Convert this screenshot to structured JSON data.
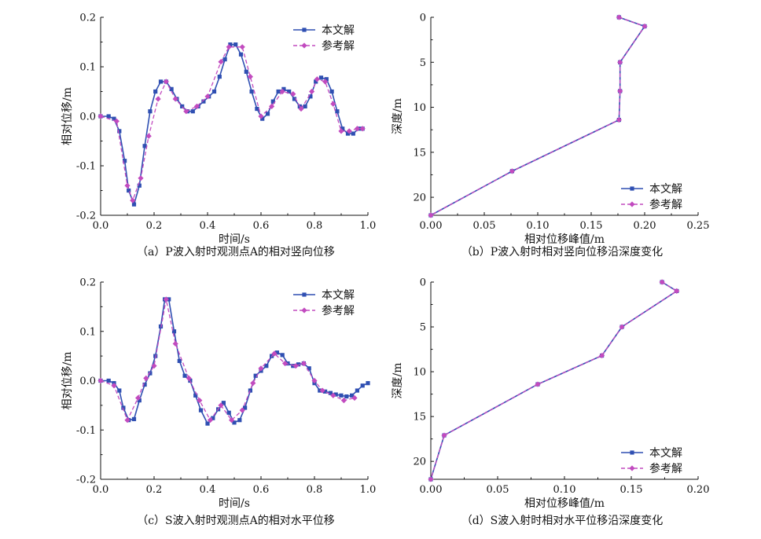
{
  "colors": {
    "series_main": "#2f4fb2",
    "series_ref": "#c24bbf",
    "axis": "#111111"
  },
  "chart_data": [
    {
      "id": "a",
      "type": "line",
      "caption": "（a）P波入射时观测点A的相对竖向位移",
      "xlabel": "时间/s",
      "ylabel": "相对位移/m",
      "xlim": [
        0.0,
        1.0
      ],
      "ylim": [
        -0.2,
        0.2
      ],
      "xticks": [
        "0.0",
        "0.2",
        "0.4",
        "0.6",
        "0.8",
        "1.0"
      ],
      "yticks": [
        "-0.2",
        "-0.1",
        "0.0",
        "0.1",
        "0.2"
      ],
      "legend_position": "top-right",
      "series": [
        {
          "name": "本文解",
          "marker": "square",
          "x": [
            0.0,
            0.03,
            0.05,
            0.07,
            0.09,
            0.105,
            0.125,
            0.145,
            0.165,
            0.185,
            0.205,
            0.225,
            0.245,
            0.265,
            0.285,
            0.305,
            0.325,
            0.345,
            0.365,
            0.385,
            0.405,
            0.425,
            0.445,
            0.465,
            0.485,
            0.505,
            0.525,
            0.545,
            0.565,
            0.585,
            0.605,
            0.625,
            0.645,
            0.665,
            0.685,
            0.705,
            0.725,
            0.745,
            0.765,
            0.785,
            0.805,
            0.825,
            0.845,
            0.865,
            0.885,
            0.905,
            0.925,
            0.945,
            0.965,
            0.98
          ],
          "y": [
            0.0,
            0.0,
            -0.005,
            -0.03,
            -0.09,
            -0.15,
            -0.178,
            -0.14,
            -0.06,
            0.01,
            0.05,
            0.07,
            0.07,
            0.055,
            0.035,
            0.02,
            0.01,
            0.01,
            0.02,
            0.03,
            0.04,
            0.05,
            0.08,
            0.115,
            0.145,
            0.145,
            0.125,
            0.09,
            0.05,
            0.015,
            -0.005,
            0.005,
            0.03,
            0.05,
            0.055,
            0.05,
            0.035,
            0.02,
            0.02,
            0.04,
            0.07,
            0.078,
            0.075,
            0.05,
            0.01,
            -0.025,
            -0.035,
            -0.035,
            -0.025,
            -0.025
          ]
        },
        {
          "name": "参考解",
          "marker": "diamond",
          "x": [
            0.0,
            0.06,
            0.1,
            0.12,
            0.15,
            0.18,
            0.215,
            0.245,
            0.28,
            0.32,
            0.36,
            0.4,
            0.45,
            0.48,
            0.53,
            0.56,
            0.6,
            0.64,
            0.68,
            0.72,
            0.75,
            0.79,
            0.81,
            0.84,
            0.87,
            0.9,
            0.93,
            0.96,
            0.98
          ],
          "y": [
            0.0,
            -0.01,
            -0.14,
            -0.17,
            -0.125,
            -0.04,
            0.035,
            0.07,
            0.035,
            0.01,
            0.02,
            0.04,
            0.11,
            0.14,
            0.14,
            0.08,
            0.0,
            0.02,
            0.05,
            0.045,
            0.015,
            0.05,
            0.075,
            0.07,
            0.025,
            -0.03,
            -0.03,
            -0.025,
            -0.025
          ]
        }
      ]
    },
    {
      "id": "b",
      "type": "line",
      "caption": "（b）P波入射时相对竖向位移沿深度变化",
      "xlabel": "相对位移峰值/m",
      "ylabel": "深度/m",
      "xlim": [
        0.0,
        0.25
      ],
      "ylim": [
        0,
        22
      ],
      "y_inverted": true,
      "xticks": [
        "0.00",
        "0.05",
        "0.10",
        "0.15",
        "0.20",
        "0.25"
      ],
      "yticks": [
        "0",
        "5",
        "10",
        "15",
        "20"
      ],
      "legend_position": "bottom-right",
      "series": [
        {
          "name": "本文解",
          "marker": "square",
          "x": [
            0.176,
            0.2,
            0.177,
            0.177,
            0.176,
            0.076,
            0.0
          ],
          "y": [
            0,
            1,
            5,
            8.2,
            11.4,
            17.1,
            22
          ]
        },
        {
          "name": "参考解",
          "marker": "diamond",
          "x": [
            0.176,
            0.2,
            0.177,
            0.177,
            0.176,
            0.076,
            0.0
          ],
          "y": [
            0,
            1,
            5,
            8.2,
            11.4,
            17.1,
            22
          ]
        }
      ]
    },
    {
      "id": "c",
      "type": "line",
      "caption": "（c）S波入射时观测点A的相对水平位移",
      "xlabel": "时间/s",
      "ylabel": "相对位移/m",
      "xlim": [
        0.0,
        1.0
      ],
      "ylim": [
        -0.2,
        0.2
      ],
      "xticks": [
        "0.0",
        "0.2",
        "0.4",
        "0.6",
        "0.8",
        "1.0"
      ],
      "yticks": [
        "-0.2",
        "-0.1",
        "0.0",
        "0.1",
        "0.2"
      ],
      "legend_position": "top-right",
      "series": [
        {
          "name": "本文解",
          "marker": "square",
          "x": [
            0.0,
            0.03,
            0.05,
            0.07,
            0.085,
            0.105,
            0.125,
            0.145,
            0.165,
            0.185,
            0.205,
            0.225,
            0.24,
            0.255,
            0.275,
            0.295,
            0.315,
            0.335,
            0.355,
            0.375,
            0.4,
            0.42,
            0.44,
            0.46,
            0.48,
            0.5,
            0.52,
            0.54,
            0.56,
            0.58,
            0.6,
            0.62,
            0.64,
            0.66,
            0.68,
            0.7,
            0.72,
            0.74,
            0.76,
            0.78,
            0.8,
            0.82,
            0.84,
            0.86,
            0.88,
            0.9,
            0.92,
            0.94,
            0.96,
            0.98,
            1.0
          ],
          "y": [
            0.0,
            0.0,
            -0.005,
            -0.02,
            -0.055,
            -0.08,
            -0.078,
            -0.04,
            -0.008,
            0.015,
            0.05,
            0.11,
            0.165,
            0.165,
            0.1,
            0.04,
            0.01,
            0.0,
            -0.03,
            -0.06,
            -0.087,
            -0.076,
            -0.058,
            -0.045,
            -0.065,
            -0.085,
            -0.08,
            -0.055,
            -0.02,
            0.01,
            0.02,
            0.03,
            0.05,
            0.057,
            0.052,
            0.035,
            0.03,
            0.033,
            0.035,
            0.025,
            -0.005,
            -0.02,
            -0.022,
            -0.025,
            -0.028,
            -0.03,
            -0.032,
            -0.03,
            -0.02,
            -0.01,
            -0.005
          ]
        },
        {
          "name": "参考解",
          "marker": "diamond",
          "x": [
            0.0,
            0.05,
            0.1,
            0.14,
            0.17,
            0.2,
            0.245,
            0.28,
            0.33,
            0.37,
            0.41,
            0.45,
            0.49,
            0.53,
            0.57,
            0.6,
            0.65,
            0.69,
            0.73,
            0.76,
            0.8,
            0.83,
            0.87,
            0.91,
            0.95
          ],
          "y": [
            0.0,
            -0.01,
            -0.08,
            -0.035,
            0.005,
            0.03,
            0.165,
            0.075,
            0.005,
            -0.04,
            -0.08,
            -0.05,
            -0.08,
            -0.06,
            -0.005,
            0.025,
            0.055,
            0.035,
            0.03,
            0.035,
            0.0,
            -0.02,
            -0.03,
            -0.04,
            -0.035
          ]
        }
      ]
    },
    {
      "id": "d",
      "type": "line",
      "caption": "（d）S波入射时相对水平位移沿深度变化",
      "xlabel": "相对位移峰值/m",
      "ylabel": "深度/m",
      "xlim": [
        0.0,
        0.2
      ],
      "ylim": [
        0,
        22
      ],
      "y_inverted": true,
      "xticks": [
        "0.00",
        "0.05",
        "0.10",
        "0.15",
        "0.20"
      ],
      "yticks": [
        "0",
        "5",
        "10",
        "15",
        "20"
      ],
      "legend_position": "bottom-right",
      "series": [
        {
          "name": "本文解",
          "marker": "square",
          "x": [
            0.173,
            0.184,
            0.143,
            0.128,
            0.08,
            0.01,
            0.0
          ],
          "y": [
            0,
            1,
            5,
            8.2,
            11.4,
            17.1,
            22
          ]
        },
        {
          "name": "参考解",
          "marker": "diamond",
          "x": [
            0.173,
            0.184,
            0.143,
            0.128,
            0.08,
            0.01,
            0.0
          ],
          "y": [
            0,
            1,
            5,
            8.2,
            11.4,
            17.1,
            22
          ]
        }
      ]
    }
  ]
}
